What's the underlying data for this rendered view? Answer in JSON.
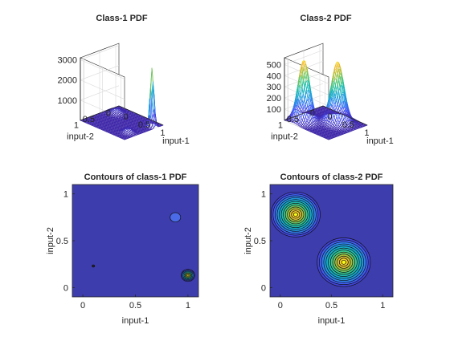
{
  "figure": {
    "background": "#ffffff",
    "axis_color": "#262626",
    "grid_color": "#d9d9d9"
  },
  "chart_data": [
    {
      "type": "surface",
      "title": "Class-1 PDF",
      "xlabel": "input-1",
      "ylabel": "input-2",
      "xticks": [
        0,
        0.5,
        1
      ],
      "yticks": [
        0,
        0.5,
        1
      ],
      "zticks": [
        1000,
        2000,
        3000
      ],
      "xlim": [
        -0.1,
        1.1
      ],
      "ylim": [
        -0.1,
        1.1
      ],
      "zlim": [
        0,
        3100
      ],
      "colormap": "parula",
      "components": [
        {
          "x": 1.0,
          "y": 0.13,
          "peak": 2900,
          "sigma": 0.04
        },
        {
          "x": 0.9,
          "y": 0.75,
          "peak": 240,
          "sigma": 0.07
        },
        {
          "x": 0.1,
          "y": 0.2,
          "peak": 220,
          "sigma": 0.09
        }
      ]
    },
    {
      "type": "surface",
      "title": "Class-2 PDF",
      "xlabel": "input-1",
      "ylabel": "input-2",
      "xticks": [
        0,
        0.5,
        1
      ],
      "yticks": [
        0,
        0.5,
        1
      ],
      "zticks": [
        100,
        200,
        300,
        400,
        500
      ],
      "xlim": [
        -0.1,
        1.1
      ],
      "ylim": [
        -0.1,
        1.1
      ],
      "zlim": [
        0,
        560
      ],
      "colormap": "parula",
      "components": [
        {
          "x": 0.15,
          "y": 0.78,
          "peak": 540,
          "sigma": 0.12
        },
        {
          "x": 0.62,
          "y": 0.27,
          "peak": 540,
          "sigma": 0.13
        }
      ]
    },
    {
      "type": "contour",
      "title": "Contours of class-1 PDF",
      "xlabel": "input-1",
      "ylabel": "input-2",
      "xticks": [
        0,
        0.5,
        1
      ],
      "yticks": [
        0,
        0.5,
        1
      ],
      "xlim": [
        -0.1,
        1.1
      ],
      "ylim": [
        -0.1,
        1.1
      ],
      "background_color": "#3d3dad",
      "features": [
        {
          "x": 0.1,
          "y": 0.23,
          "rings": 1,
          "max_r": 0.012,
          "kind": "dot"
        },
        {
          "x": 0.88,
          "y": 0.75,
          "rings": 1,
          "max_r": 0.05,
          "kind": "blob"
        },
        {
          "x": 1.0,
          "y": 0.13,
          "rings": 7,
          "max_r": 0.065,
          "kind": "peak"
        }
      ]
    },
    {
      "type": "contour",
      "title": "Contours of class-2 PDF",
      "xlabel": "input-1",
      "ylabel": "input-2",
      "xticks": [
        0,
        0.5,
        1
      ],
      "yticks": [
        0,
        0.5,
        1
      ],
      "xlim": [
        -0.1,
        1.1
      ],
      "ylim": [
        -0.1,
        1.1
      ],
      "background_color": "#3d3dad",
      "features": [
        {
          "x": 0.15,
          "y": 0.78,
          "rings": 12,
          "max_r": 0.24,
          "kind": "peak"
        },
        {
          "x": 0.62,
          "y": 0.27,
          "rings": 12,
          "max_r": 0.26,
          "kind": "peak"
        }
      ]
    }
  ]
}
